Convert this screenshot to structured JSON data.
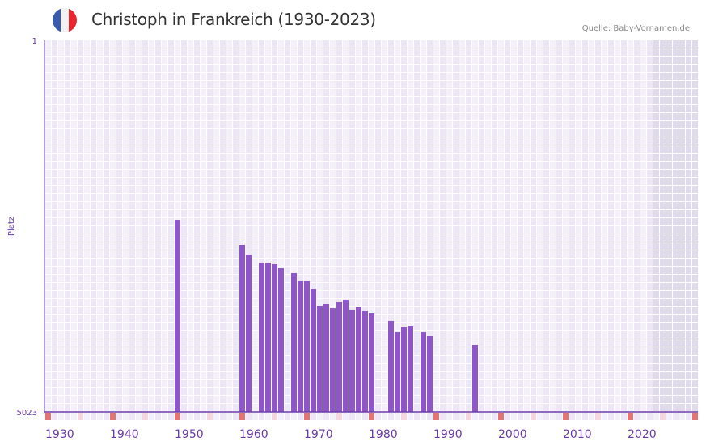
{
  "header": {
    "title": "Christoph in Frankreich (1930-2023)",
    "source": "Quelle: Baby-Vornamen.de",
    "flag_colors": [
      "#3a5bad",
      "#f2f2f2",
      "#e8262e"
    ]
  },
  "chart_data": {
    "type": "bar",
    "title": "Christoph in Frankreich (1930-2023)",
    "xlabel": "",
    "ylabel": "Platz",
    "ylim": [
      1,
      5023
    ],
    "y_inverted": true,
    "y_ticks": [
      "1",
      "5023"
    ],
    "xlim": [
      1930,
      2030
    ],
    "x_ticks": [
      1930,
      1940,
      1950,
      1960,
      1970,
      1980,
      1990,
      2000,
      2010,
      2020
    ],
    "x": [
      1950,
      1960,
      1961,
      1963,
      1964,
      1965,
      1966,
      1968,
      1969,
      1970,
      1971,
      1972,
      1973,
      1974,
      1975,
      1976,
      1977,
      1978,
      1979,
      1980,
      1983,
      1984,
      1985,
      1986,
      1988,
      1989,
      1996
    ],
    "values": [
      2425,
      2763,
      2894,
      3003,
      3003,
      3025,
      3080,
      3145,
      3254,
      3254,
      3364,
      3593,
      3560,
      3615,
      3538,
      3506,
      3647,
      3604,
      3658,
      3691,
      3789,
      3942,
      3877,
      3866,
      3942,
      3997,
      4117
    ],
    "future_from": 2024,
    "colors": {
      "bar": "#8e56c8",
      "axis": "#6a3aa8",
      "decade_marker": "#e57373",
      "half_decade_marker": "#f5d5de",
      "cell_a": "#f3effb",
      "cell_b": "#ece6f7",
      "future": "#e0dbec"
    }
  }
}
